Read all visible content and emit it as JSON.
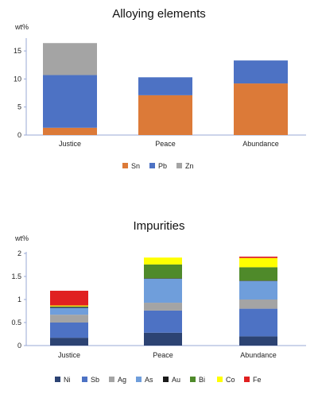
{
  "chart_data": [
    {
      "type": "bar",
      "stacked": true,
      "title": "Alloying elements",
      "ylabel": "wt%",
      "xlabel": "",
      "categories": [
        "Justice",
        "Peace",
        "Abundance"
      ],
      "ylim": [
        0,
        17
      ],
      "yticks": [
        0,
        5,
        10,
        15
      ],
      "ytick_labels": [
        "0",
        "5",
        "10",
        "15"
      ],
      "grid": false,
      "legend": "bottom",
      "series": [
        {
          "name": "Sn",
          "color": "#dc7a38",
          "values": [
            1.3,
            7.1,
            9.2
          ]
        },
        {
          "name": "Pb",
          "color": "#4d72c4",
          "values": [
            9.4,
            3.2,
            4.1
          ]
        },
        {
          "name": "Zn",
          "color": "#a4a4a4",
          "values": [
            5.7,
            0,
            0
          ]
        }
      ]
    },
    {
      "type": "bar",
      "stacked": true,
      "title": "Impurities",
      "ylabel": "wt%",
      "xlabel": "",
      "categories": [
        "Justice",
        "Peace",
        "Abundance"
      ],
      "ylim": [
        0,
        2
      ],
      "yticks": [
        0,
        0.5,
        1,
        1.5,
        2
      ],
      "ytick_labels": [
        "0",
        "0.5",
        "1",
        "1.5",
        "2"
      ],
      "grid": false,
      "legend": "bottom",
      "series": [
        {
          "name": "Ni",
          "color": "#2c4373",
          "values": [
            0.17,
            0.28,
            0.2
          ]
        },
        {
          "name": "Sb",
          "color": "#4d72c4",
          "values": [
            0.33,
            0.48,
            0.6
          ]
        },
        {
          "name": "Ag",
          "color": "#a4a4a4",
          "values": [
            0.17,
            0.17,
            0.2
          ]
        },
        {
          "name": "As",
          "color": "#6f9edb",
          "values": [
            0.15,
            0.52,
            0.4
          ]
        },
        {
          "name": "Au",
          "color": "#1a1a1a",
          "values": [
            0.02,
            0.01,
            0.01
          ]
        },
        {
          "name": "Bi",
          "color": "#4f8a2a",
          "values": [
            0.01,
            0.3,
            0.29
          ]
        },
        {
          "name": "Co",
          "color": "#ffff00",
          "values": [
            0.02,
            0.15,
            0.2
          ]
        },
        {
          "name": "Fe",
          "color": "#e02020",
          "values": [
            0.32,
            0.0,
            0.03
          ]
        }
      ]
    }
  ]
}
